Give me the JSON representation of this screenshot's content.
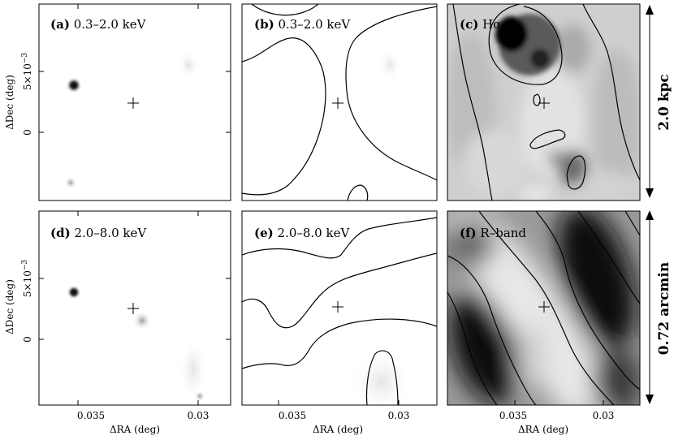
{
  "panels": [
    {
      "id": "a",
      "letter": "(a)",
      "text": " 0.3–2.0 keV"
    },
    {
      "id": "b",
      "letter": "(b)",
      "text": " 0.3–2.0 keV"
    },
    {
      "id": "c",
      "letter": "(c)",
      "text": " Hα"
    },
    {
      "id": "d",
      "letter": "(d)",
      "text": " 2.0–8.0 keV"
    },
    {
      "id": "e",
      "letter": "(e)",
      "text": " 2.0–8.0 keV"
    },
    {
      "id": "f",
      "letter": "(f)",
      "text": " R–band"
    }
  ],
  "axes": {
    "ylabel": "ΔDec (deg)",
    "xlabel": "ΔRA (deg)",
    "ytick_top": "5×10",
    "ytick_top_exp": "−3",
    "ytick_zero": "0",
    "xtick_left": "0.035",
    "xtick_right": "0.03"
  },
  "scale_bars": {
    "top": "2.0 kpc",
    "bottom": "0.72 arcmin"
  }
}
